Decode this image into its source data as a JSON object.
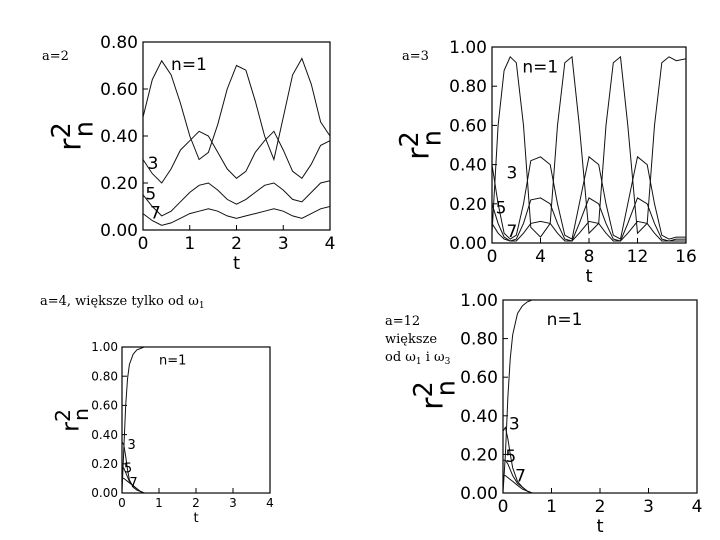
{
  "chart_data": [
    {
      "type": "line",
      "caption": "a=2",
      "xlabel": "t",
      "ylabel_main": "r",
      "ylabel_sup": "2",
      "ylabel_sub": "n",
      "xlim": [
        0,
        4
      ],
      "ylim": [
        0,
        0.8
      ],
      "xticks": [
        "0",
        "1",
        "2",
        "3",
        "4"
      ],
      "yticks": [
        "0.00",
        "0.20",
        "0.40",
        "0.60",
        "0.80"
      ],
      "series": [
        {
          "name": "n=1",
          "x": [
            0,
            0.2,
            0.4,
            0.6,
            0.8,
            1.0,
            1.2,
            1.4,
            1.6,
            1.8,
            2.0,
            2.2,
            2.4,
            2.6,
            2.8,
            3.0,
            3.2,
            3.4,
            3.6,
            3.8,
            4.0
          ],
          "y": [
            0.48,
            0.64,
            0.72,
            0.66,
            0.54,
            0.4,
            0.3,
            0.33,
            0.45,
            0.6,
            0.7,
            0.68,
            0.55,
            0.4,
            0.3,
            0.48,
            0.66,
            0.73,
            0.62,
            0.46,
            0.4
          ]
        },
        {
          "name": "3",
          "x": [
            0,
            0.2,
            0.4,
            0.6,
            0.8,
            1.0,
            1.2,
            1.4,
            1.6,
            1.8,
            2.0,
            2.2,
            2.4,
            2.6,
            2.8,
            3.0,
            3.2,
            3.4,
            3.6,
            3.8,
            4.0
          ],
          "y": [
            0.3,
            0.24,
            0.2,
            0.26,
            0.34,
            0.38,
            0.42,
            0.4,
            0.33,
            0.26,
            0.22,
            0.25,
            0.33,
            0.38,
            0.42,
            0.34,
            0.25,
            0.22,
            0.28,
            0.36,
            0.38
          ]
        },
        {
          "name": "5",
          "x": [
            0,
            0.2,
            0.4,
            0.6,
            0.8,
            1.0,
            1.2,
            1.4,
            1.6,
            1.8,
            2.0,
            2.2,
            2.4,
            2.6,
            2.8,
            3.0,
            3.2,
            3.4,
            3.6,
            3.8,
            4.0
          ],
          "y": [
            0.15,
            0.1,
            0.06,
            0.08,
            0.12,
            0.16,
            0.19,
            0.2,
            0.17,
            0.13,
            0.11,
            0.13,
            0.16,
            0.19,
            0.2,
            0.17,
            0.13,
            0.12,
            0.16,
            0.2,
            0.21
          ]
        },
        {
          "name": "7",
          "x": [
            0,
            0.2,
            0.4,
            0.6,
            0.8,
            1.0,
            1.2,
            1.4,
            1.6,
            1.8,
            2.0,
            2.2,
            2.4,
            2.6,
            2.8,
            3.0,
            3.2,
            3.4,
            3.6,
            3.8,
            4.0
          ],
          "y": [
            0.07,
            0.04,
            0.02,
            0.03,
            0.05,
            0.07,
            0.08,
            0.09,
            0.08,
            0.06,
            0.05,
            0.06,
            0.07,
            0.08,
            0.09,
            0.08,
            0.06,
            0.05,
            0.07,
            0.09,
            0.1
          ]
        }
      ],
      "series_label_anchor": {
        "n=1": [
          0.6,
          0.68
        ],
        "3": [
          0.1,
          0.26
        ],
        "5": [
          0.05,
          0.13
        ],
        "7": [
          0.15,
          0.05
        ]
      }
    },
    {
      "type": "line",
      "caption": "a=3",
      "xlabel": "t",
      "ylabel_main": "r",
      "ylabel_sup": "2",
      "ylabel_sub": "n",
      "xlim": [
        0,
        16
      ],
      "ylim": [
        0,
        1
      ],
      "xticks": [
        "0",
        "4",
        "8",
        "12",
        "16"
      ],
      "yticks": [
        "0.00",
        "0.20",
        "0.40",
        "0.60",
        "0.80",
        "1.00"
      ],
      "series": [
        {
          "name": "n=1",
          "x": [
            0,
            0.5,
            1,
            1.5,
            2,
            2.6,
            3.2,
            4,
            4.8,
            5.4,
            6,
            6.6,
            7.2,
            8,
            8.8,
            9.4,
            10,
            10.6,
            11.2,
            12,
            12.8,
            13.4,
            14,
            14.6,
            15.2,
            16
          ],
          "y": [
            0.05,
            0.6,
            0.88,
            0.95,
            0.92,
            0.6,
            0.08,
            0.03,
            0.1,
            0.6,
            0.92,
            0.95,
            0.6,
            0.05,
            0.1,
            0.6,
            0.92,
            0.95,
            0.6,
            0.05,
            0.1,
            0.6,
            0.92,
            0.95,
            0.93,
            0.94
          ]
        },
        {
          "name": "3",
          "x": [
            0,
            0.5,
            1,
            1.5,
            2,
            2.6,
            3.2,
            4,
            4.8,
            5.4,
            6,
            6.6,
            7.2,
            8,
            8.8,
            9.4,
            10,
            10.6,
            11.2,
            12,
            12.8,
            13.4,
            14,
            14.6,
            15.2,
            16
          ],
          "y": [
            0.4,
            0.2,
            0.05,
            0.02,
            0.04,
            0.2,
            0.42,
            0.44,
            0.4,
            0.2,
            0.04,
            0.02,
            0.2,
            0.44,
            0.4,
            0.2,
            0.04,
            0.02,
            0.2,
            0.44,
            0.4,
            0.2,
            0.04,
            0.02,
            0.03,
            0.03
          ]
        },
        {
          "name": "5",
          "x": [
            0,
            0.5,
            1,
            1.5,
            2,
            2.6,
            3.2,
            4,
            4.8,
            5.4,
            6,
            6.6,
            7.2,
            8,
            8.8,
            9.4,
            10,
            10.6,
            11.2,
            12,
            12.8,
            13.4,
            14,
            14.6,
            15.2,
            16
          ],
          "y": [
            0.2,
            0.1,
            0.03,
            0.01,
            0.02,
            0.1,
            0.22,
            0.23,
            0.2,
            0.1,
            0.02,
            0.01,
            0.1,
            0.23,
            0.2,
            0.1,
            0.02,
            0.01,
            0.1,
            0.23,
            0.2,
            0.1,
            0.02,
            0.01,
            0.02,
            0.02
          ]
        },
        {
          "name": "7",
          "x": [
            0,
            0.5,
            1,
            1.5,
            2,
            2.6,
            3.2,
            4,
            4.8,
            5.4,
            6,
            6.6,
            7.2,
            8,
            8.8,
            9.4,
            10,
            10.6,
            11.2,
            12,
            12.8,
            13.4,
            14,
            14.6,
            15.2,
            16
          ],
          "y": [
            0.1,
            0.05,
            0.02,
            0.01,
            0.01,
            0.05,
            0.1,
            0.11,
            0.1,
            0.05,
            0.01,
            0.01,
            0.05,
            0.11,
            0.1,
            0.05,
            0.01,
            0.01,
            0.05,
            0.11,
            0.1,
            0.05,
            0.01,
            0.01,
            0.01,
            0.01
          ]
        }
      ],
      "series_label_anchor": {
        "n=1": [
          2.5,
          0.87
        ],
        "3": [
          1.2,
          0.33
        ],
        "5": [
          0.3,
          0.15
        ],
        "7": [
          1.2,
          0.03
        ]
      }
    },
    {
      "type": "line",
      "caption_lines": [
        "a=4, większe tylko od ω",
        "1"
      ],
      "xlabel": "t",
      "ylabel_main": "r",
      "ylabel_sup": "2",
      "ylabel_sub": "n",
      "xlim": [
        0,
        4
      ],
      "ylim": [
        0,
        1
      ],
      "xticks": [
        "0",
        "1",
        "2",
        "3",
        "4"
      ],
      "yticks": [
        "0.00",
        "0.20",
        "0.40",
        "0.60",
        "0.80",
        "1.00"
      ],
      "series": [
        {
          "name": "n=1",
          "x": [
            0,
            0.05,
            0.1,
            0.15,
            0.2,
            0.3,
            0.4,
            0.5,
            0.6,
            0.8,
            1.0,
            1.5,
            2.0,
            3.0,
            4.0
          ],
          "y": [
            0.0,
            0.3,
            0.6,
            0.78,
            0.88,
            0.95,
            0.98,
            0.99,
            1.0,
            1.0,
            1.0,
            1.0,
            1.0,
            1.0,
            1.0
          ]
        },
        {
          "name": "3",
          "x": [
            0,
            0.05,
            0.1,
            0.15,
            0.2,
            0.3,
            0.4,
            0.5,
            0.6,
            0.8,
            1.0,
            1.5,
            2.0,
            3.0,
            4.0
          ],
          "y": [
            0.35,
            0.33,
            0.25,
            0.16,
            0.09,
            0.04,
            0.02,
            0.01,
            0.0,
            0.0,
            0.0,
            0.0,
            0.0,
            0.0,
            0.0
          ]
        },
        {
          "name": "5",
          "x": [
            0,
            0.05,
            0.1,
            0.15,
            0.2,
            0.3,
            0.4,
            0.5,
            0.6,
            0.8,
            1.0,
            1.5,
            2.0,
            3.0,
            4.0
          ],
          "y": [
            0.18,
            0.17,
            0.14,
            0.11,
            0.08,
            0.05,
            0.03,
            0.01,
            0.0,
            0.0,
            0.0,
            0.0,
            0.0,
            0.0,
            0.0
          ]
        },
        {
          "name": "7",
          "x": [
            0,
            0.05,
            0.1,
            0.15,
            0.2,
            0.3,
            0.4,
            0.5,
            0.6,
            0.8,
            1.0,
            1.5,
            2.0,
            3.0,
            4.0
          ],
          "y": [
            0.1,
            0.1,
            0.09,
            0.08,
            0.07,
            0.05,
            0.03,
            0.01,
            0.0,
            0.0,
            0.0,
            0.0,
            0.0,
            0.0,
            0.0
          ]
        }
      ],
      "series_label_anchor": {
        "n=1": [
          1.0,
          0.88
        ],
        "3": [
          0.15,
          0.3
        ],
        "5": [
          0.05,
          0.14
        ],
        "7": [
          0.2,
          0.04
        ]
      }
    },
    {
      "type": "line",
      "caption_lines": [
        "a=12",
        "większe",
        "od ω",
        "1",
        " i ω",
        "3"
      ],
      "xlabel": "t",
      "ylabel_main": "r",
      "ylabel_sup": "2",
      "ylabel_sub": "n",
      "xlim": [
        0,
        4
      ],
      "ylim": [
        0,
        1
      ],
      "xticks": [
        "0",
        "1",
        "2",
        "3",
        "4"
      ],
      "yticks": [
        "0.00",
        "0.20",
        "0.40",
        "0.60",
        "0.80",
        "1.00"
      ],
      "series": [
        {
          "name": "n=1",
          "x": [
            0,
            0.05,
            0.1,
            0.15,
            0.2,
            0.3,
            0.4,
            0.5,
            0.6,
            0.8,
            1.0,
            1.5,
            2.0,
            3.0,
            4.0
          ],
          "y": [
            0.0,
            0.2,
            0.5,
            0.7,
            0.82,
            0.93,
            0.97,
            0.99,
            1.0,
            1.0,
            1.0,
            1.0,
            1.0,
            1.0,
            1.0
          ]
        },
        {
          "name": "3",
          "x": [
            0,
            0.05,
            0.1,
            0.15,
            0.2,
            0.3,
            0.4,
            0.5,
            0.6,
            0.8,
            1.0,
            1.5,
            2.0,
            3.0,
            4.0
          ],
          "y": [
            0.32,
            0.34,
            0.28,
            0.2,
            0.13,
            0.06,
            0.03,
            0.01,
            0.0,
            0.0,
            0.0,
            0.0,
            0.0,
            0.0,
            0.0
          ]
        },
        {
          "name": "5",
          "x": [
            0,
            0.05,
            0.1,
            0.15,
            0.2,
            0.3,
            0.4,
            0.5,
            0.6,
            0.8,
            1.0,
            1.5,
            2.0,
            3.0,
            4.0
          ],
          "y": [
            0.17,
            0.17,
            0.15,
            0.12,
            0.09,
            0.05,
            0.03,
            0.01,
            0.0,
            0.0,
            0.0,
            0.0,
            0.0,
            0.0,
            0.0
          ]
        },
        {
          "name": "7",
          "x": [
            0,
            0.05,
            0.1,
            0.15,
            0.2,
            0.3,
            0.4,
            0.5,
            0.6,
            0.8,
            1.0,
            1.5,
            2.0,
            3.0,
            4.0
          ],
          "y": [
            0.09,
            0.09,
            0.08,
            0.07,
            0.06,
            0.04,
            0.02,
            0.01,
            0.0,
            0.0,
            0.0,
            0.0,
            0.0,
            0.0,
            0.0
          ]
        }
      ],
      "series_label_anchor": {
        "n=1": [
          0.9,
          0.87
        ],
        "3": [
          0.12,
          0.33
        ],
        "5": [
          0.05,
          0.16
        ],
        "7": [
          0.25,
          0.06
        ]
      }
    }
  ]
}
